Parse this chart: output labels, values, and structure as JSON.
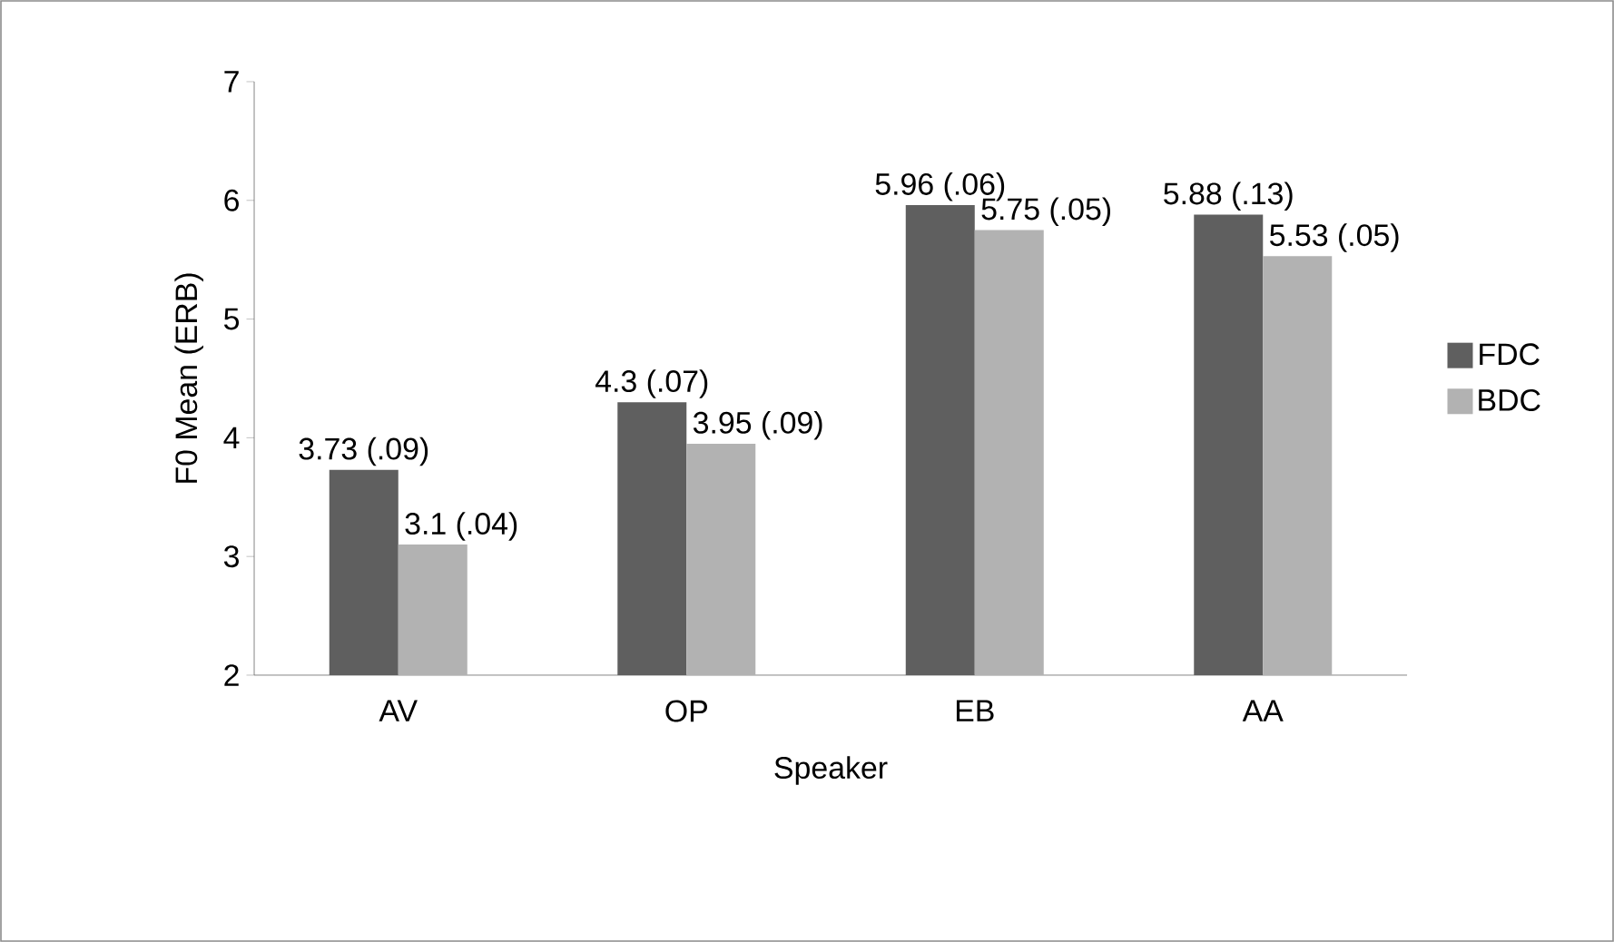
{
  "chart_data": {
    "type": "bar",
    "xlabel": "Speaker",
    "ylabel": "F0 Mean (ERB)",
    "categories": [
      "AV",
      "OP",
      "EB",
      "AA"
    ],
    "series": [
      {
        "name": "FDC",
        "color": "#5f5f5f",
        "values": [
          3.73,
          4.3,
          5.96,
          5.88
        ],
        "value_labels": [
          "3.73 (.09)",
          "4.3 (.07)",
          "5.96 (.06)",
          "5.88 (.13)"
        ]
      },
      {
        "name": "BDC",
        "color": "#b2b2b2",
        "values": [
          3.1,
          3.95,
          5.75,
          5.53
        ],
        "value_labels": [
          "3.1 (.04)",
          "3.95 (.09)",
          "5.75 (.05)",
          "5.53 (.05)"
        ]
      }
    ],
    "ylim": [
      2,
      7
    ],
    "yticks": [
      2,
      3,
      4,
      5,
      6,
      7
    ],
    "legend": "right"
  }
}
